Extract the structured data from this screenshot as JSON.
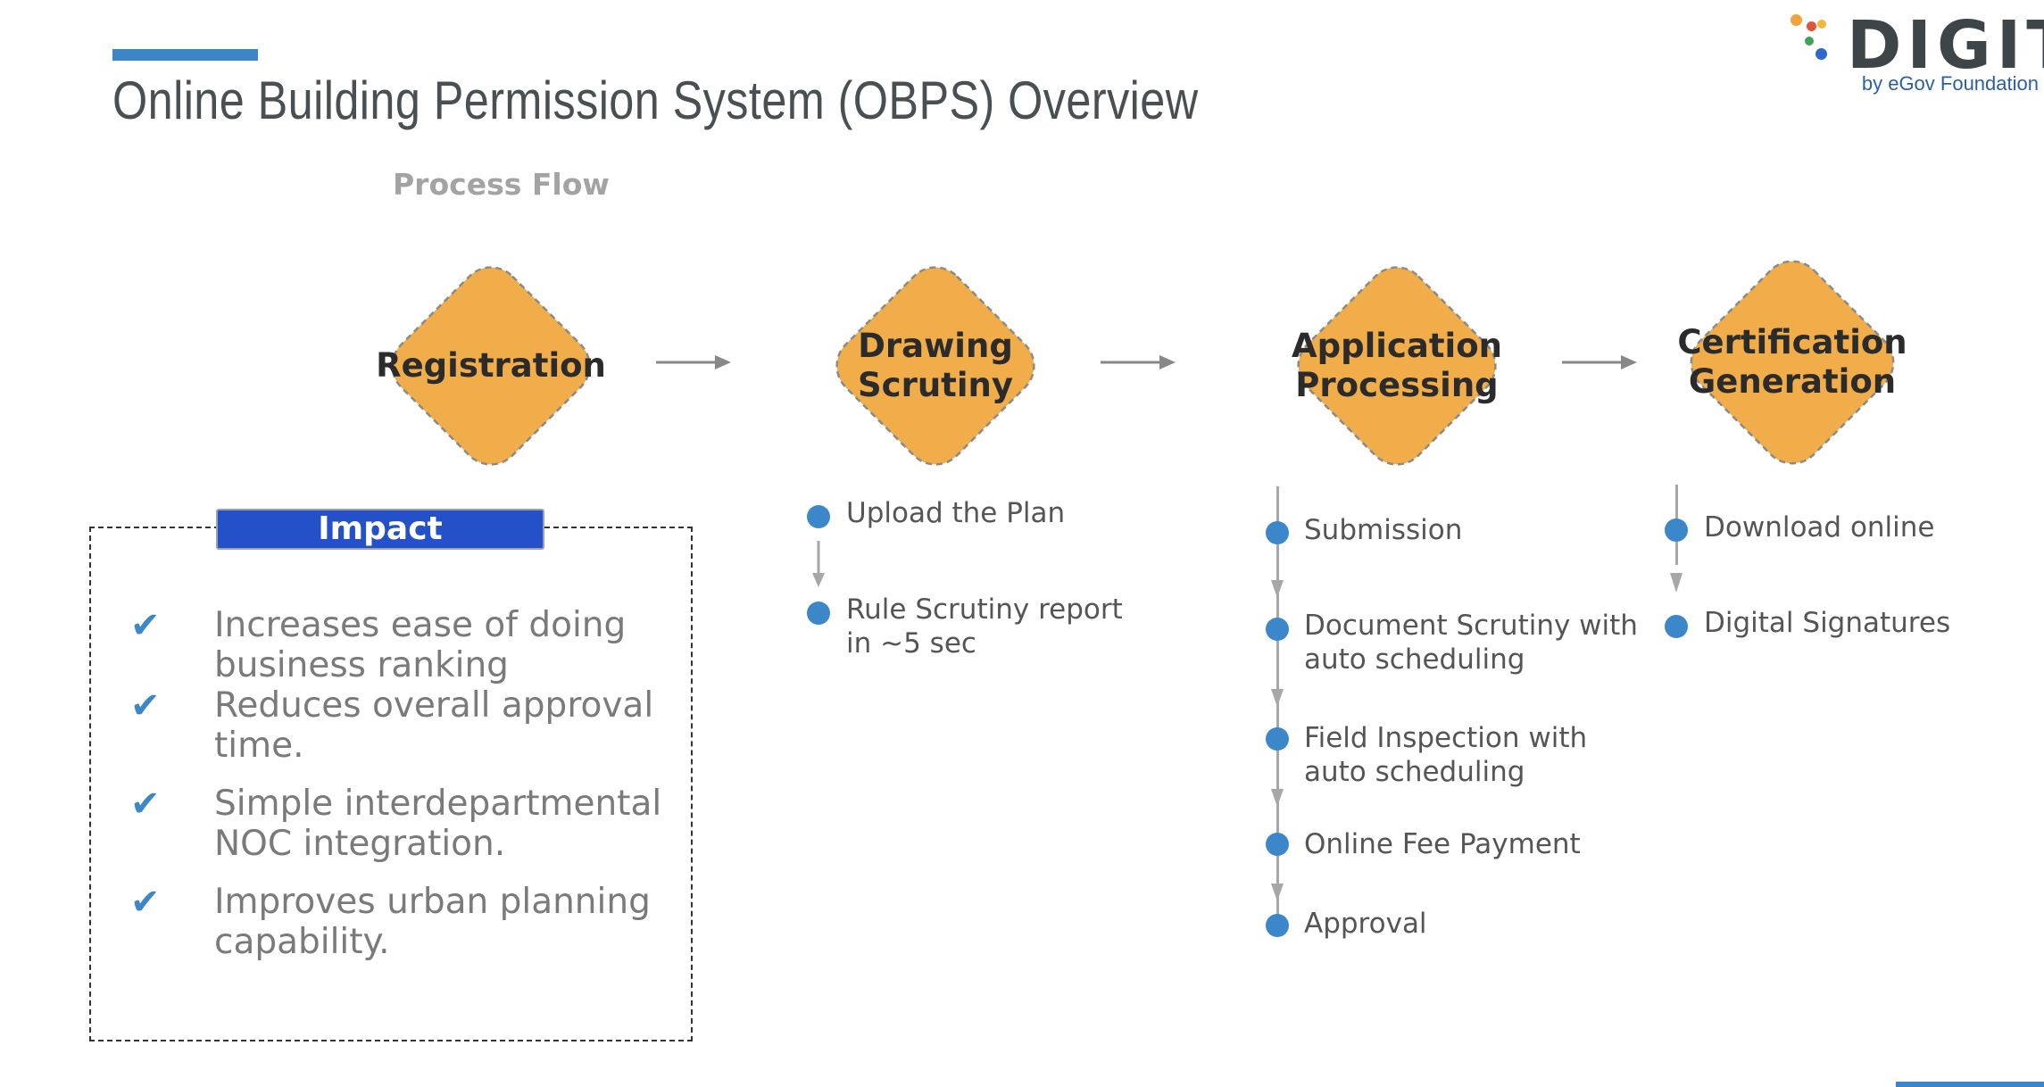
{
  "title": "Online Building Permission System (OBPS) Overview",
  "logo": {
    "word": "DIGIT",
    "tagline": "by eGov Foundation"
  },
  "subtitle": "Process Flow",
  "colors": {
    "diamond_fill": "#f0ad4a",
    "accent_blue": "#3b87c9",
    "impact_tag": "#2451c8"
  },
  "stages": [
    {
      "label_lines": [
        "Registration"
      ]
    },
    {
      "label_lines": [
        "Drawing",
        "Scrutiny"
      ]
    },
    {
      "label_lines": [
        "Application",
        "Processing"
      ]
    },
    {
      "label_lines": [
        "Certification",
        "Generation"
      ]
    }
  ],
  "drawing_steps": [
    {
      "lines": [
        "Upload the Plan"
      ]
    },
    {
      "lines": [
        "Rule Scrutiny report",
        "in ~5 sec"
      ]
    }
  ],
  "processing_steps": [
    {
      "lines": [
        "Submission"
      ]
    },
    {
      "lines": [
        "Document Scrutiny with",
        "auto scheduling"
      ]
    },
    {
      "lines": [
        "Field Inspection with",
        "auto scheduling"
      ]
    },
    {
      "lines": [
        "Online Fee Payment"
      ]
    },
    {
      "lines": [
        "Approval"
      ]
    }
  ],
  "certification_steps": [
    {
      "lines": [
        "Download online"
      ]
    },
    {
      "lines": [
        "Digital Signatures"
      ]
    }
  ],
  "impact": {
    "heading": "Impact",
    "check_icon": "check-mark-icon",
    "items": [
      {
        "lines": [
          "Increases ease of doing",
          "business ranking"
        ]
      },
      {
        "lines": [
          "Reduces overall approval",
          "time."
        ]
      },
      {
        "lines": [
          "Simple interdepartmental",
          "NOC integration."
        ]
      },
      {
        "lines": [
          "Improves urban planning",
          "capability."
        ]
      }
    ]
  }
}
